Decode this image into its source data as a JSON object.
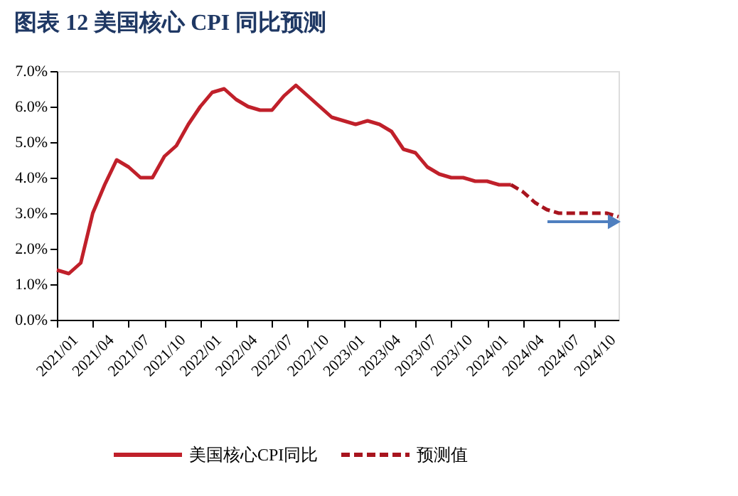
{
  "chart_data": {
    "type": "line",
    "title": "图表 12    美国核心 CPI 同比预测",
    "categories": [
      "2021/01",
      null,
      null,
      "2021/04",
      null,
      null,
      "2021/07",
      null,
      null,
      "2021/10",
      null,
      null,
      "2022/01",
      null,
      null,
      "2022/04",
      null,
      null,
      "2022/07",
      null,
      null,
      "2022/10",
      null,
      null,
      "2023/01",
      null,
      null,
      "2023/04",
      null,
      null,
      "2023/07",
      null,
      null,
      "2023/10",
      null,
      null,
      "2024/01",
      null,
      null,
      "2024/04",
      null,
      null,
      "2024/07",
      null,
      null,
      "2024/10",
      null,
      null
    ],
    "series": [
      {
        "name": "美国核心CPI同比",
        "color": "#c0202a",
        "line_style": "solid",
        "values": [
          1.4,
          1.3,
          1.6,
          3.0,
          3.8,
          4.5,
          4.3,
          4.0,
          4.0,
          4.6,
          4.9,
          5.5,
          6.0,
          6.4,
          6.5,
          6.2,
          6.0,
          5.9,
          5.9,
          6.3,
          6.6,
          6.3,
          6.0,
          5.7,
          5.6,
          5.5,
          5.6,
          5.5,
          5.3,
          4.8,
          4.7,
          4.3,
          4.1,
          4.0,
          4.0,
          3.9,
          3.9,
          3.8,
          3.8,
          null,
          null,
          null,
          null,
          null,
          null,
          null,
          null,
          null
        ]
      },
      {
        "name": "预测值",
        "color": "#a8141e",
        "line_style": "dashed",
        "values": [
          null,
          null,
          null,
          null,
          null,
          null,
          null,
          null,
          null,
          null,
          null,
          null,
          null,
          null,
          null,
          null,
          null,
          null,
          null,
          null,
          null,
          null,
          null,
          null,
          null,
          null,
          null,
          null,
          null,
          null,
          null,
          null,
          null,
          null,
          null,
          null,
          null,
          null,
          3.8,
          3.6,
          3.3,
          3.1,
          3.0,
          3.0,
          3.0,
          3.0,
          3.0,
          2.9
        ]
      }
    ],
    "ylim": [
      0,
      7
    ],
    "yticks": [
      {
        "value": 0,
        "label": "0.0%"
      },
      {
        "value": 1,
        "label": "1.0%"
      },
      {
        "value": 2,
        "label": "2.0%"
      },
      {
        "value": 3,
        "label": "3.0%"
      },
      {
        "value": 4,
        "label": "4.0%"
      },
      {
        "value": 5,
        "label": "5.0%"
      },
      {
        "value": 6,
        "label": "6.0%"
      },
      {
        "value": 7,
        "label": "7.0%"
      }
    ],
    "grid": false,
    "legend": "bottom",
    "marker": "none"
  }
}
